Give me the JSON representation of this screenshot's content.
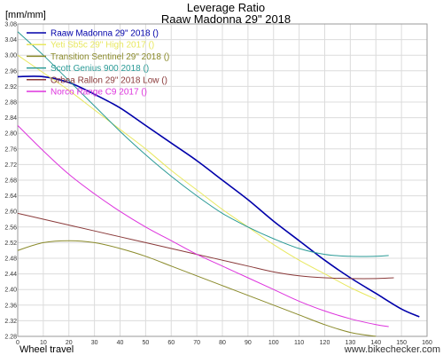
{
  "chart_data": {
    "type": "line",
    "title": "Leverage Ratio",
    "subtitle": "Raaw Madonna 29\" 2018",
    "ylabel": "[mm/mm]",
    "xlabel": "Wheel travel",
    "watermark": "www.bikechecker.com",
    "xlim": [
      0,
      160
    ],
    "ylim": [
      2.28,
      3.08
    ],
    "xticks": [
      0,
      10,
      20,
      30,
      40,
      50,
      60,
      70,
      80,
      90,
      100,
      110,
      120,
      130,
      140,
      150,
      160
    ],
    "yticks": [
      2.28,
      2.32,
      2.36,
      2.4,
      2.44,
      2.48,
      2.52,
      2.56,
      2.6,
      2.64,
      2.68,
      2.72,
      2.76,
      2.8,
      2.84,
      2.88,
      2.92,
      2.96,
      3.0,
      3.04,
      3.08
    ],
    "grid": true,
    "legend_position": "top-left",
    "series": [
      {
        "name": "Raaw Madonna 29\" 2018 ()",
        "color": "#0000aa",
        "x": [
          0,
          10,
          20,
          30,
          40,
          50,
          60,
          70,
          80,
          90,
          100,
          110,
          120,
          130,
          140,
          150,
          157
        ],
        "y": [
          2.945,
          2.945,
          2.93,
          2.9,
          2.865,
          2.82,
          2.775,
          2.73,
          2.68,
          2.63,
          2.575,
          2.525,
          2.475,
          2.43,
          2.39,
          2.35,
          2.33
        ]
      },
      {
        "name": "Yeti Sb5c 29\" High 2017 ()",
        "color": "#e8e860",
        "x": [
          0,
          10,
          20,
          30,
          40,
          50,
          60,
          70,
          80,
          90,
          100,
          110,
          120,
          130,
          140
        ],
        "y": [
          3.0,
          2.955,
          2.91,
          2.86,
          2.81,
          2.76,
          2.705,
          2.655,
          2.605,
          2.56,
          2.515,
          2.475,
          2.44,
          2.405,
          2.375
        ]
      },
      {
        "name": "Transition Sentinel 29\" 2018 ()",
        "color": "#8a8a2a",
        "x": [
          0,
          10,
          20,
          30,
          40,
          50,
          60,
          70,
          80,
          90,
          100,
          110,
          120,
          130,
          140
        ],
        "y": [
          2.5,
          2.52,
          2.525,
          2.52,
          2.505,
          2.485,
          2.46,
          2.435,
          2.41,
          2.385,
          2.36,
          2.335,
          2.31,
          2.29,
          2.28
        ]
      },
      {
        "name": "Scott Genius 900 2018 ()",
        "color": "#2a9a96",
        "x": [
          0,
          10,
          20,
          30,
          40,
          50,
          60,
          70,
          80,
          90,
          100,
          110,
          120,
          130,
          140,
          145
        ],
        "y": [
          3.06,
          3.0,
          2.935,
          2.87,
          2.805,
          2.745,
          2.69,
          2.64,
          2.595,
          2.56,
          2.53,
          2.505,
          2.49,
          2.485,
          2.485,
          2.487
        ]
      },
      {
        "name": "Orbea Rallon 29\" 2018 Low ()",
        "color": "#8a3a3a",
        "x": [
          0,
          10,
          20,
          30,
          40,
          50,
          60,
          70,
          80,
          90,
          100,
          110,
          120,
          130,
          140,
          147
        ],
        "y": [
          2.595,
          2.58,
          2.565,
          2.55,
          2.535,
          2.52,
          2.505,
          2.49,
          2.475,
          2.46,
          2.445,
          2.435,
          2.43,
          2.428,
          2.428,
          2.43
        ]
      },
      {
        "name": "Norco Range C9 2017 ()",
        "color": "#dd33dd",
        "x": [
          0,
          10,
          20,
          30,
          40,
          50,
          60,
          70,
          80,
          90,
          100,
          110,
          120,
          130,
          140,
          145
        ],
        "y": [
          2.82,
          2.755,
          2.695,
          2.645,
          2.6,
          2.56,
          2.525,
          2.49,
          2.46,
          2.43,
          2.4,
          2.37,
          2.345,
          2.325,
          2.31,
          2.305
        ]
      }
    ]
  }
}
